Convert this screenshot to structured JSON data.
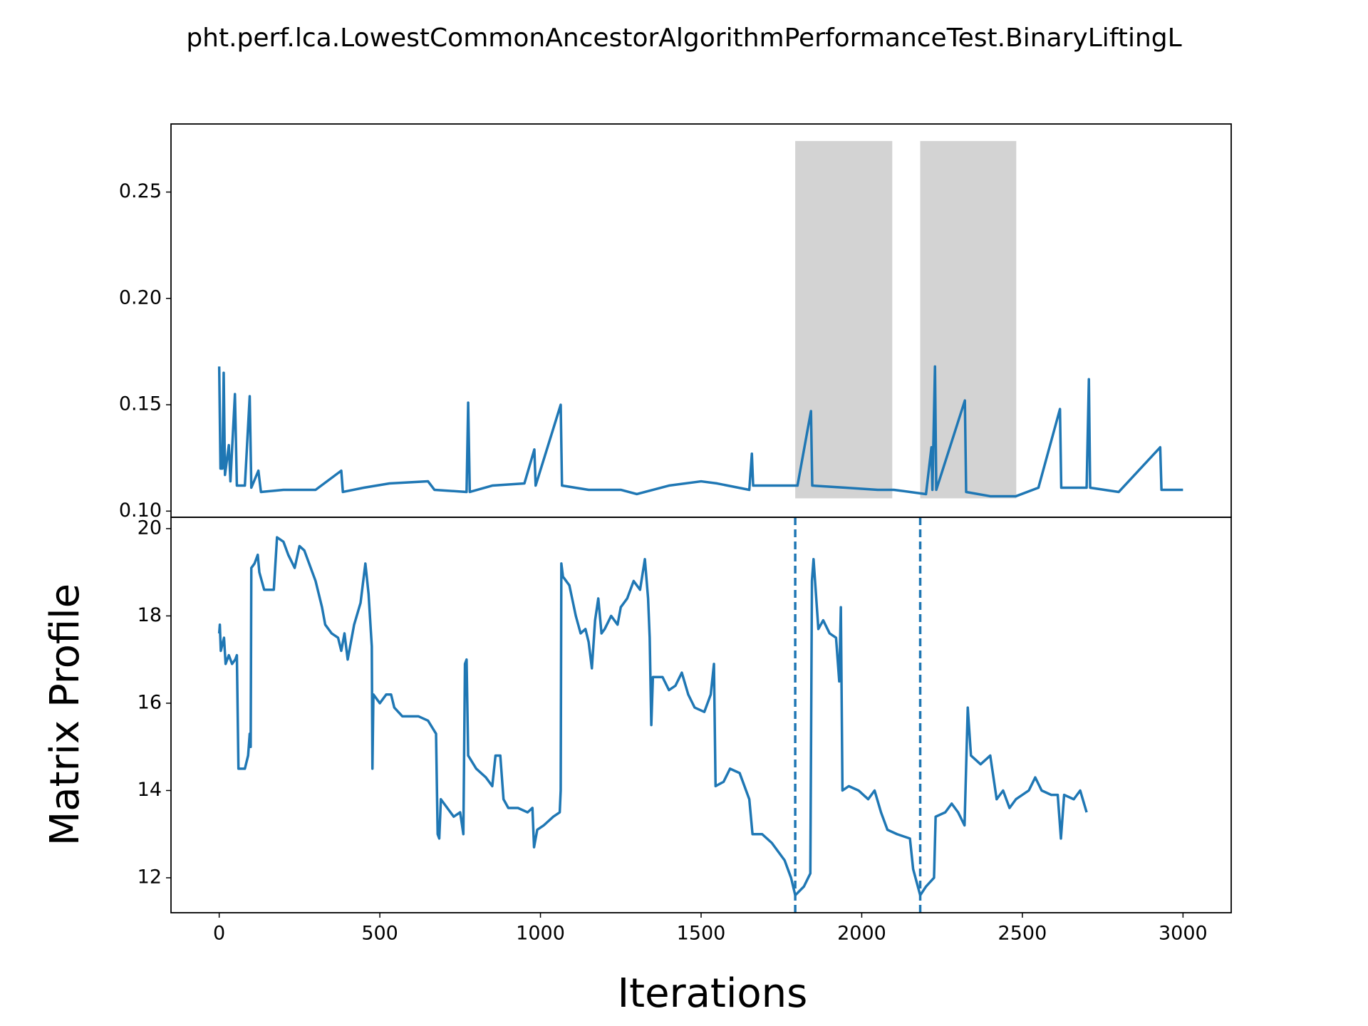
{
  "chart_data": [
    {
      "type": "line",
      "title": "pht.perf.lca.LowestCommonAncestorAlgorithmPerformanceTest.BinaryLiftingL",
      "xlim": [
        -150,
        3150
      ],
      "ylim": [
        0.0971,
        0.282
      ],
      "yticks": [
        {
          "value": 0.1,
          "label": "0.10"
        },
        0.15,
        {
          "value": 0.2,
          "label": "0.20"
        },
        0.25
      ],
      "highlights": [
        [
          1793,
          2095
        ],
        [
          2182,
          2481
        ]
      ],
      "highlight_ylim": [
        0.106,
        0.274
      ],
      "highlight_color": "#d3d3d3",
      "series": [
        {
          "color": "#1f77b4",
          "x": [
            0,
            4,
            10,
            14,
            18,
            30,
            35,
            49,
            55,
            80,
            95,
            100,
            122,
            130,
            200,
            300,
            380,
            385,
            450,
            530,
            650,
            670,
            770,
            775,
            780,
            850,
            950,
            981,
            985,
            1063,
            1067,
            1150,
            1250,
            1300,
            1400,
            1500,
            1550,
            1650,
            1658,
            1662,
            1800,
            1842,
            1846,
            1950,
            2050,
            2100,
            2200,
            2217,
            2220,
            2228,
            2232,
            2321,
            2325,
            2400,
            2480,
            2550,
            2617,
            2621,
            2700,
            2707,
            2711,
            2800,
            2929,
            2933,
            3000
          ],
          "values": [
            0.168,
            0.12,
            0.12,
            0.165,
            0.117,
            0.131,
            0.114,
            0.155,
            0.112,
            0.112,
            0.154,
            0.111,
            0.119,
            0.109,
            0.11,
            0.11,
            0.119,
            0.109,
            0.111,
            0.113,
            0.114,
            0.11,
            0.109,
            0.151,
            0.109,
            0.112,
            0.113,
            0.129,
            0.112,
            0.15,
            0.112,
            0.11,
            0.11,
            0.108,
            0.112,
            0.114,
            0.113,
            0.11,
            0.127,
            0.112,
            0.112,
            0.147,
            0.112,
            0.111,
            0.11,
            0.11,
            0.108,
            0.13,
            0.11,
            0.168,
            0.11,
            0.152,
            0.109,
            0.107,
            0.107,
            0.111,
            0.148,
            0.111,
            0.111,
            0.162,
            0.111,
            0.109,
            0.13,
            0.11,
            0.11
          ]
        }
      ]
    },
    {
      "type": "line",
      "x_label": "Iterations",
      "y_label": "Matrix Profile",
      "xlim": [
        -150,
        3150
      ],
      "ylim": [
        11.2,
        20.26
      ],
      "xticks": [
        0,
        500,
        1000,
        1500,
        2000,
        2500,
        3000
      ],
      "yticks": [
        12,
        14,
        16,
        18,
        20
      ],
      "vlines": [
        1793,
        2182
      ],
      "series": [
        {
          "color": "#1f77b4",
          "x": [
            0,
            2,
            5,
            15,
            20,
            30,
            40,
            50,
            55,
            60,
            80,
            90,
            95,
            98,
            100,
            110,
            120,
            125,
            140,
            170,
            180,
            200,
            215,
            235,
            250,
            265,
            280,
            300,
            320,
            330,
            350,
            370,
            380,
            390,
            400,
            420,
            440,
            455,
            465,
            475,
            477,
            480,
            500,
            520,
            535,
            545,
            570,
            620,
            650,
            675,
            680,
            685,
            690,
            710,
            730,
            750,
            760,
            765,
            770,
            775,
            800,
            830,
            850,
            860,
            875,
            885,
            900,
            930,
            960,
            975,
            980,
            990,
            1010,
            1040,
            1060,
            1063,
            1065,
            1070,
            1090,
            1110,
            1125,
            1140,
            1150,
            1160,
            1170,
            1180,
            1190,
            1200,
            1220,
            1240,
            1250,
            1270,
            1290,
            1310,
            1325,
            1335,
            1340,
            1345,
            1350,
            1380,
            1400,
            1420,
            1440,
            1460,
            1480,
            1510,
            1530,
            1540,
            1545,
            1570,
            1590,
            1620,
            1640,
            1650,
            1660,
            1690,
            1720,
            1760,
            1780,
            1793,
            1820,
            1840,
            1845,
            1850,
            1865,
            1880,
            1900,
            1920,
            1930,
            1935,
            1940,
            1960,
            1990,
            2020,
            2040,
            2060,
            2080,
            2110,
            2150,
            2160,
            2182,
            2200,
            2225,
            2230,
            2260,
            2280,
            2300,
            2320,
            2330,
            2340,
            2370,
            2400,
            2410,
            2420,
            2440,
            2460,
            2480,
            2500,
            2520,
            2540,
            2560,
            2590,
            2610,
            2620,
            2630,
            2660,
            2680,
            2700
          ],
          "values": [
            17.6,
            17.8,
            17.2,
            17.5,
            16.9,
            17.1,
            16.9,
            17.0,
            17.1,
            14.5,
            14.5,
            14.8,
            15.3,
            15.0,
            19.1,
            19.2,
            19.4,
            19.0,
            18.6,
            18.6,
            19.8,
            19.7,
            19.4,
            19.1,
            19.6,
            19.5,
            19.2,
            18.8,
            18.2,
            17.8,
            17.6,
            17.5,
            17.2,
            17.6,
            17.0,
            17.8,
            18.3,
            19.2,
            18.5,
            17.3,
            14.5,
            16.2,
            16.0,
            16.2,
            16.2,
            15.9,
            15.7,
            15.7,
            15.6,
            15.3,
            13.0,
            12.9,
            13.8,
            13.6,
            13.4,
            13.5,
            13.0,
            16.9,
            17.0,
            14.8,
            14.5,
            14.3,
            14.1,
            14.8,
            14.8,
            13.8,
            13.6,
            13.6,
            13.5,
            13.6,
            12.7,
            13.1,
            13.2,
            13.4,
            13.5,
            14.0,
            19.2,
            18.9,
            18.7,
            18.0,
            17.6,
            17.7,
            17.4,
            16.8,
            17.9,
            18.4,
            17.6,
            17.7,
            18.0,
            17.8,
            18.2,
            18.4,
            18.8,
            18.6,
            19.3,
            18.4,
            17.5,
            15.5,
            16.6,
            16.6,
            16.3,
            16.4,
            16.7,
            16.2,
            15.9,
            15.8,
            16.2,
            16.9,
            14.1,
            14.2,
            14.5,
            14.4,
            14.0,
            13.8,
            13.0,
            13.0,
            12.8,
            12.4,
            12.0,
            11.6,
            11.8,
            12.1,
            18.8,
            19.3,
            17.7,
            17.9,
            17.6,
            17.5,
            16.5,
            18.2,
            14.0,
            14.1,
            14.0,
            13.8,
            14.0,
            13.5,
            13.1,
            13.0,
            12.9,
            12.2,
            11.6,
            11.8,
            12.0,
            13.4,
            13.5,
            13.7,
            13.5,
            13.2,
            15.9,
            14.8,
            14.6,
            14.8,
            14.3,
            13.8,
            14.0,
            13.6,
            13.8,
            13.9,
            14.0,
            14.3,
            14.0,
            13.9,
            13.9,
            12.9,
            13.9,
            13.8,
            14.0,
            13.5
          ]
        }
      ]
    }
  ]
}
